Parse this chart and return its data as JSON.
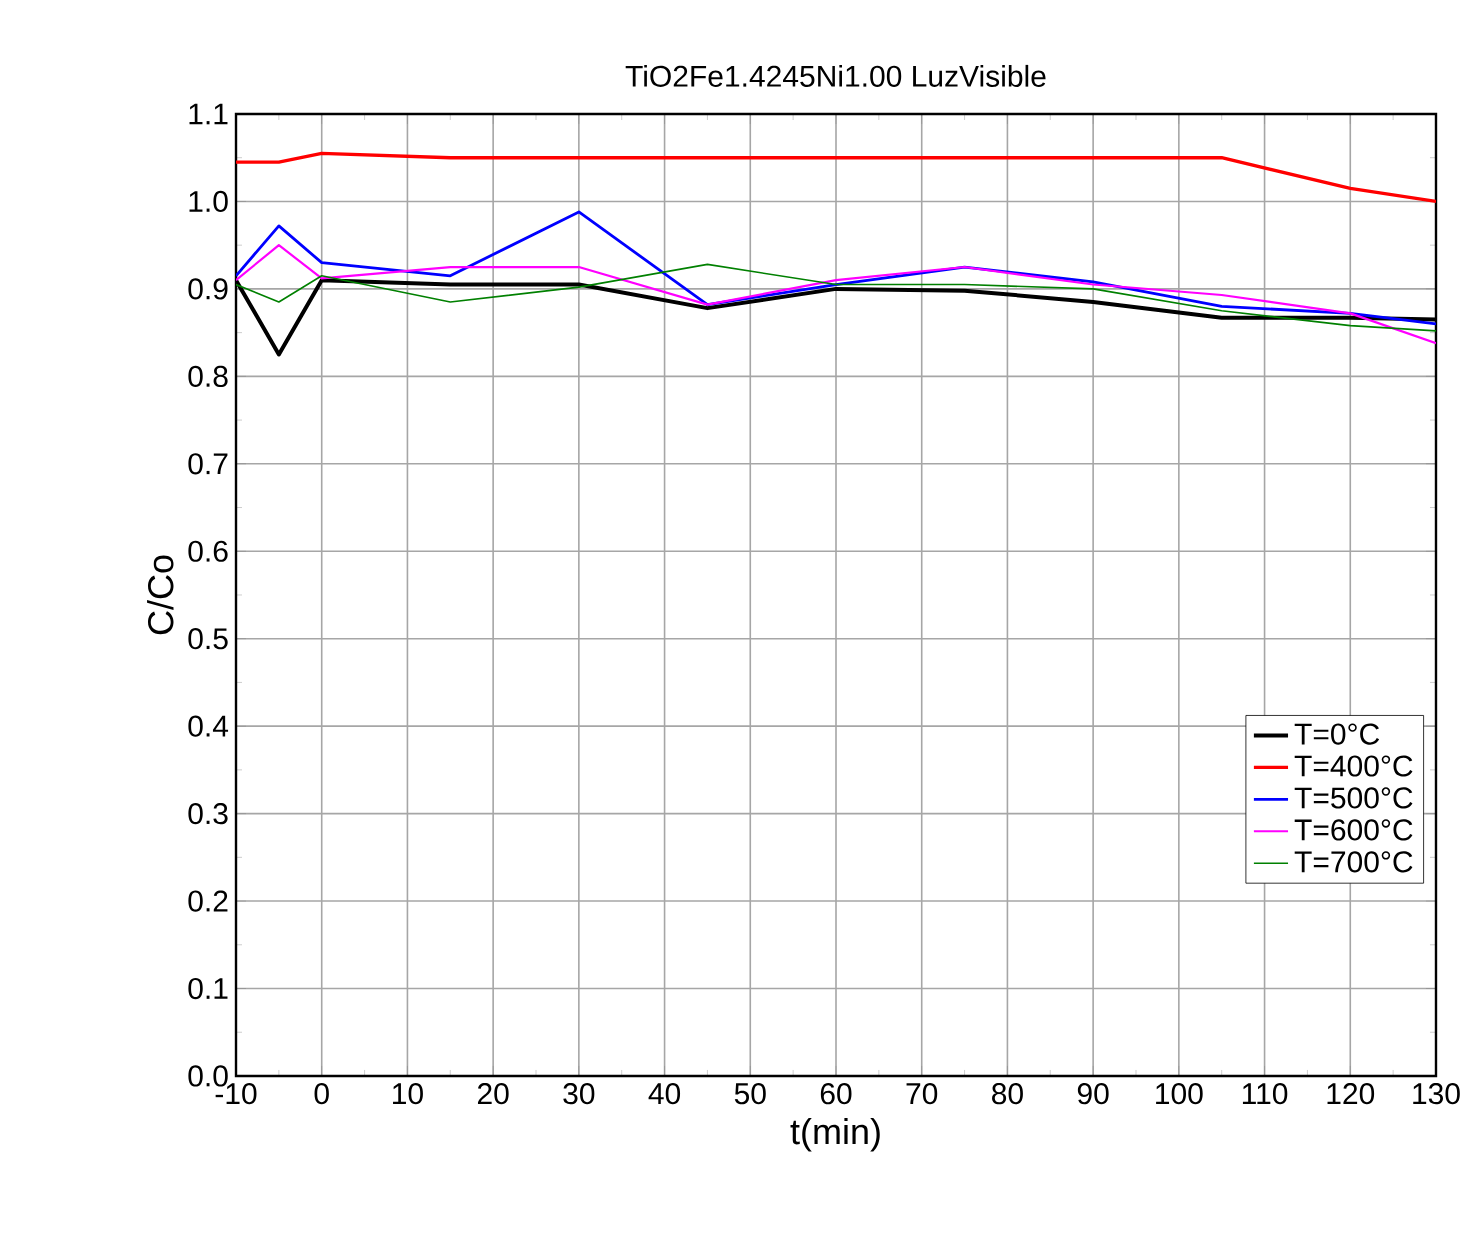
{
  "chart_data": {
    "type": "line",
    "title": "TiO2Fe1.4245Ni1.00 LuzVisible",
    "xlabel": "t(min)",
    "ylabel": "C/Co",
    "x": [
      -10,
      -5,
      0,
      15,
      30,
      45,
      60,
      75,
      90,
      105,
      120,
      130
    ],
    "series": [
      {
        "name": "T=0°C",
        "color": "#000000",
        "values": [
          0.91,
          0.825,
          0.91,
          0.905,
          0.905,
          0.878,
          0.9,
          0.898,
          0.885,
          0.867,
          0.867,
          0.865
        ]
      },
      {
        "name": "T=400°C",
        "color": "#ff0000",
        "values": [
          1.045,
          1.045,
          1.055,
          1.05,
          1.05,
          1.05,
          1.05,
          1.05,
          1.05,
          1.05,
          1.015,
          1.0
        ]
      },
      {
        "name": "T=500°C",
        "color": "#0000ff",
        "values": [
          0.915,
          0.972,
          0.93,
          0.915,
          0.988,
          0.882,
          0.905,
          0.925,
          0.908,
          0.88,
          0.872,
          0.86
        ]
      },
      {
        "name": "T=600°C",
        "color": "#ff00ff",
        "values": [
          0.91,
          0.95,
          0.912,
          0.925,
          0.925,
          0.882,
          0.91,
          0.925,
          0.905,
          0.893,
          0.872,
          0.838
        ]
      },
      {
        "name": "T=700°C",
        "color": "#008000",
        "values": [
          0.905,
          0.885,
          0.915,
          0.885,
          0.902,
          0.928,
          0.905,
          0.905,
          0.9,
          0.875,
          0.858,
          0.852
        ]
      }
    ],
    "xlim": [
      -10,
      130
    ],
    "xticks": [
      -10,
      0,
      10,
      20,
      30,
      40,
      50,
      60,
      70,
      80,
      90,
      100,
      110,
      120,
      130
    ],
    "ylim": [
      0,
      1.1
    ],
    "yticks": [
      "0.0",
      0.1,
      0.2,
      0.3,
      0.4,
      0.5,
      0.6,
      0.7,
      0.8,
      0.9,
      "1.0",
      1.1
    ],
    "grid": true,
    "legend": "right",
    "marker": "none",
    "line_style": "solid"
  }
}
